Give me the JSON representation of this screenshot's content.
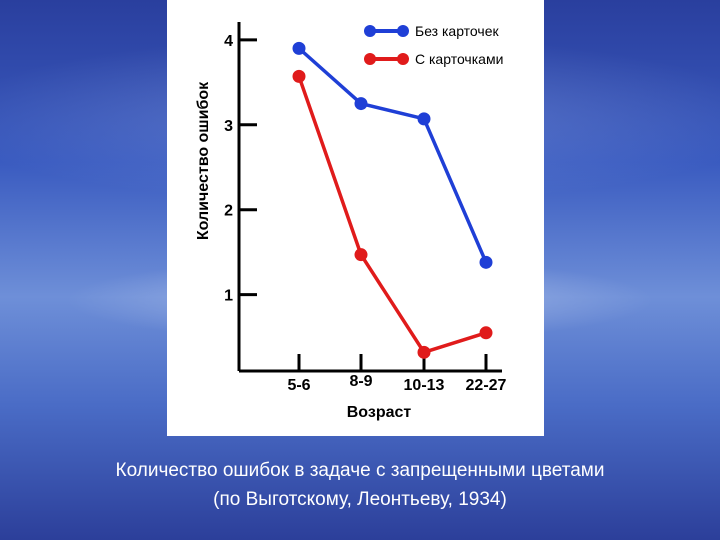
{
  "chart_data": {
    "type": "line",
    "xlabel": "Возраст",
    "ylabel": "Количество ошибок",
    "categories": [
      "5-6",
      "8-9",
      "10-13",
      "22-27"
    ],
    "yticks": [
      1,
      2,
      3,
      4
    ],
    "ylim": [
      0.1,
      4.2
    ],
    "series": [
      {
        "name": "Без карточек",
        "color": "#1f3fd6",
        "values": [
          3.9,
          3.25,
          3.07,
          1.38
        ]
      },
      {
        "name": "С карточками",
        "color": "#e01b1b",
        "values": [
          3.57,
          1.47,
          0.32,
          0.55
        ]
      }
    ],
    "legend_position": "top-right",
    "grid": false
  },
  "caption": {
    "line1": "Количество ошибок в задаче с запрещенными цветами",
    "line2": "(по Выготскому, Леонтьеву, 1934)"
  }
}
